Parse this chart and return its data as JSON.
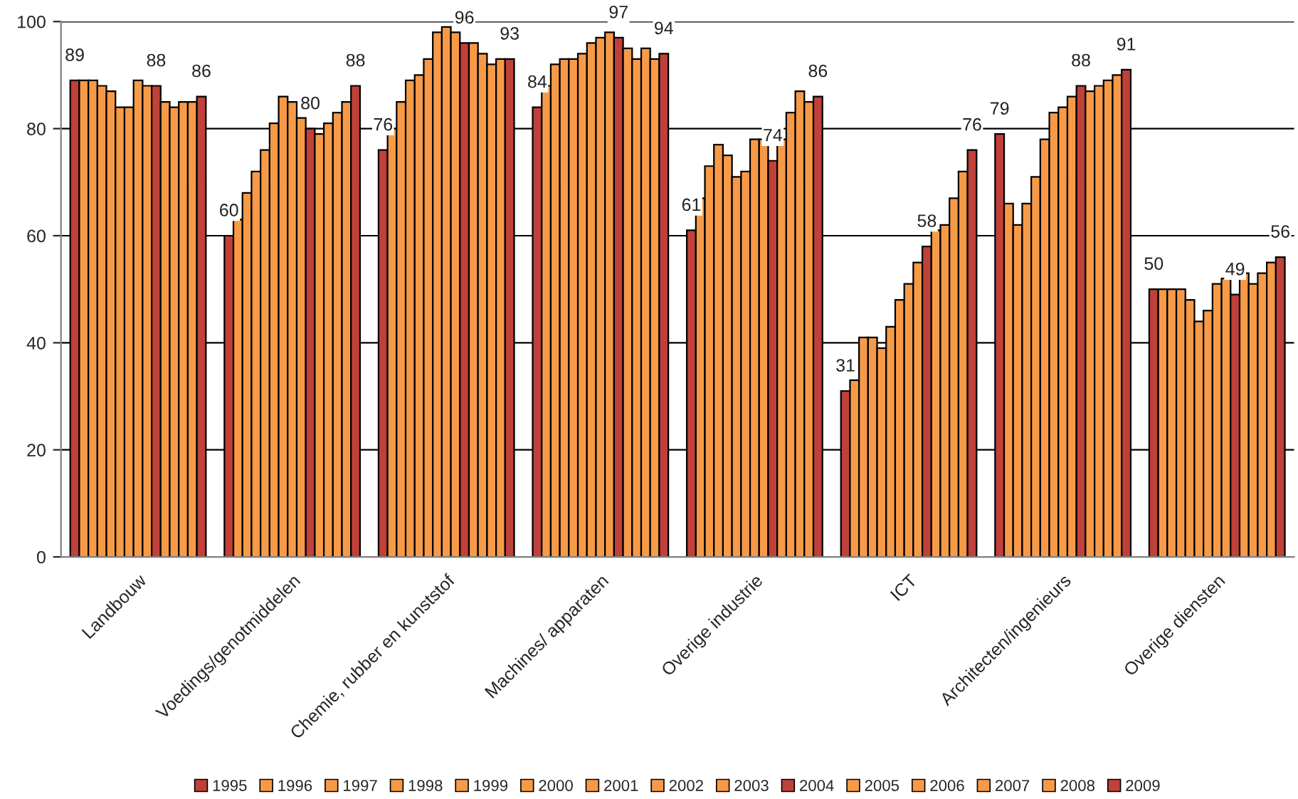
{
  "chart_data": {
    "type": "bar",
    "categories": [
      "Landbouw",
      "Voedings/genotmiddelen",
      "Chemie, rubber en kunststof",
      "Machines/ apparaten",
      "Overige industrie",
      "ICT",
      "Architecten/ingenieurs",
      "Overige diensten"
    ],
    "series": [
      {
        "name": "1995",
        "color": "#c0403a",
        "values": [
          89,
          60,
          76,
          84,
          61,
          31,
          79,
          50
        ],
        "value_labels": [
          "89",
          "60",
          "76",
          "84",
          "61",
          "31",
          "79",
          "50"
        ]
      },
      {
        "name": "1996",
        "color": "#f79a48",
        "values": [
          89,
          63,
          80,
          88,
          67,
          33,
          66,
          50
        ]
      },
      {
        "name": "1997",
        "color": "#f79a48",
        "values": [
          89,
          68,
          85,
          92,
          73,
          41,
          62,
          50
        ]
      },
      {
        "name": "1998",
        "color": "#f79a48",
        "values": [
          88,
          72,
          89,
          93,
          77,
          41,
          66,
          50
        ]
      },
      {
        "name": "1999",
        "color": "#f79a48",
        "values": [
          87,
          76,
          90,
          93,
          75,
          39,
          71,
          48
        ]
      },
      {
        "name": "2000",
        "color": "#f79a48",
        "values": [
          84,
          81,
          93,
          94,
          71,
          43,
          78,
          44
        ]
      },
      {
        "name": "2001",
        "color": "#f79a48",
        "values": [
          84,
          86,
          98,
          96,
          72,
          48,
          83,
          46
        ]
      },
      {
        "name": "2002",
        "color": "#f79a48",
        "values": [
          89,
          85,
          99,
          97,
          78,
          51,
          84,
          51
        ]
      },
      {
        "name": "2003",
        "color": "#f79a48",
        "values": [
          88,
          82,
          98,
          98,
          78,
          55,
          86,
          52
        ]
      },
      {
        "name": "2004",
        "color": "#c0403a",
        "values": [
          88,
          80,
          96,
          97,
          74,
          58,
          88,
          49
        ],
        "value_labels": [
          "88",
          "80",
          "96",
          "97",
          "74",
          "58",
          "88",
          "49"
        ]
      },
      {
        "name": "2005",
        "color": "#f79a48",
        "values": [
          85,
          79,
          96,
          95,
          78,
          61,
          87,
          53
        ]
      },
      {
        "name": "2006",
        "color": "#f79a48",
        "values": [
          84,
          81,
          94,
          93,
          83,
          62,
          88,
          51
        ]
      },
      {
        "name": "2007",
        "color": "#f79a48",
        "values": [
          85,
          83,
          92,
          95,
          87,
          67,
          89,
          53
        ]
      },
      {
        "name": "2008",
        "color": "#f79a48",
        "values": [
          85,
          85,
          93,
          93,
          85,
          72,
          90,
          55
        ]
      },
      {
        "name": "2009",
        "color": "#c0403a",
        "values": [
          86,
          88,
          93,
          94,
          86,
          76,
          91,
          56
        ],
        "value_labels": [
          "86",
          "88",
          "93",
          "94",
          "86",
          "76",
          "91",
          "56"
        ]
      }
    ],
    "ylim": [
      0,
      100
    ],
    "yticks": [
      0,
      20,
      40,
      60,
      80,
      100
    ],
    "grid": "y",
    "legend": "bottom"
  }
}
